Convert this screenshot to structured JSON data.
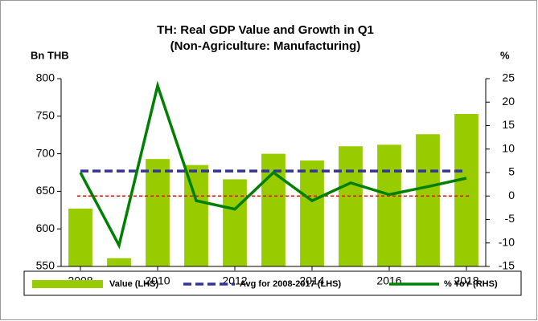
{
  "chart_data": {
    "type": "combo",
    "title": "TH: Real GDP Value and Growth in Q1",
    "subtitle": "(Non-Agriculture: Manufacturing)",
    "y_label": "Bn THB",
    "y2_label": "%",
    "x": [
      2008,
      2009,
      2010,
      2011,
      2012,
      2013,
      2014,
      2015,
      2016,
      2017,
      2018
    ],
    "xlim": [
      2007.5,
      2018.5
    ],
    "xticks": [
      2008,
      2010,
      2012,
      2014,
      2016,
      2018
    ],
    "ylim": [
      550,
      800
    ],
    "yticks": [
      550,
      600,
      650,
      700,
      750,
      800
    ],
    "y2lim": [
      -15,
      25
    ],
    "y2ticks": [
      -15,
      -10,
      -5,
      0,
      5,
      10,
      15,
      20,
      25
    ],
    "series": [
      {
        "name": "Value (LHS)",
        "type": "bar",
        "color": "#99cc00",
        "values": [
          627,
          561,
          693,
          685,
          666,
          700,
          691,
          710,
          712,
          726,
          753
        ]
      },
      {
        "name": "Avg for 2008-2017 (LHS)",
        "type": "hline",
        "color": "#333399",
        "value": 677
      },
      {
        "name": "% YoY (RHS)",
        "type": "line",
        "axis": "y2",
        "color": "#008000",
        "values": [
          5,
          -10.5,
          23.5,
          -1,
          -2.8,
          5,
          -1,
          2.8,
          0.3,
          2,
          3.8
        ]
      }
    ],
    "reference_line": {
      "value": 0,
      "axis": "y2",
      "color": "#ff0000"
    }
  }
}
